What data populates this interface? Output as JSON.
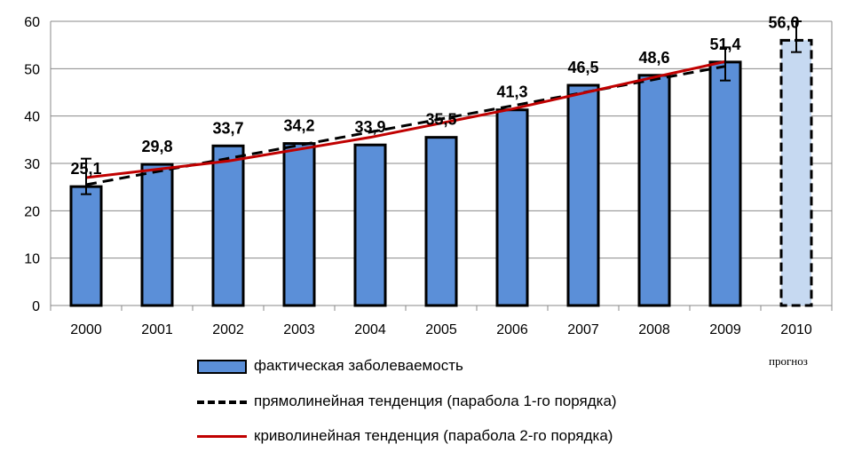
{
  "chart_data": {
    "type": "bar",
    "categories": [
      "2000",
      "2001",
      "2002",
      "2003",
      "2004",
      "2005",
      "2006",
      "2007",
      "2008",
      "2009",
      "2010"
    ],
    "values": [
      25.1,
      29.8,
      33.7,
      34.2,
      33.9,
      35.5,
      41.3,
      46.5,
      48.6,
      51.4,
      56.0
    ],
    "value_labels": [
      "25,1",
      "29,8",
      "33,7",
      "34,2",
      "33,9",
      "35,5",
      "41,3",
      "46,5",
      "48,6",
      "51,4",
      "56,0"
    ],
    "forecast_index": 10,
    "ylim": [
      0,
      60
    ],
    "yticks": [
      0,
      10,
      20,
      30,
      40,
      50,
      60
    ],
    "grid": true,
    "error_bars": [
      {
        "index": 0,
        "low": 23.5,
        "high": 31.0
      },
      {
        "index": 9,
        "low": 47.5,
        "high": 54.5
      },
      {
        "index": 10,
        "low": 53.5,
        "high": 60.0
      }
    ],
    "series": [
      {
        "name": "фактическая заболеваемость",
        "kind": "bar",
        "color": "#5b8fd8"
      },
      {
        "name": "прямолинейная тенденция (парабола 1-го порядка)",
        "kind": "line",
        "style": "dashed",
        "color": "#000000",
        "x": [
          "2000",
          "2009"
        ],
        "values": [
          25.5,
          50.5
        ]
      },
      {
        "name": "криволинейная тенденция (парабола 2-го порядка)",
        "kind": "line",
        "style": "solid",
        "color": "#c00000",
        "x": [
          "2000",
          "2002",
          "2004",
          "2006",
          "2008",
          "2009"
        ],
        "values": [
          27.0,
          30.5,
          35.5,
          41.5,
          48.2,
          51.5
        ]
      }
    ],
    "forecast_color": "#c6d9f1",
    "legend_position": "bottom"
  },
  "note": "прогноз"
}
